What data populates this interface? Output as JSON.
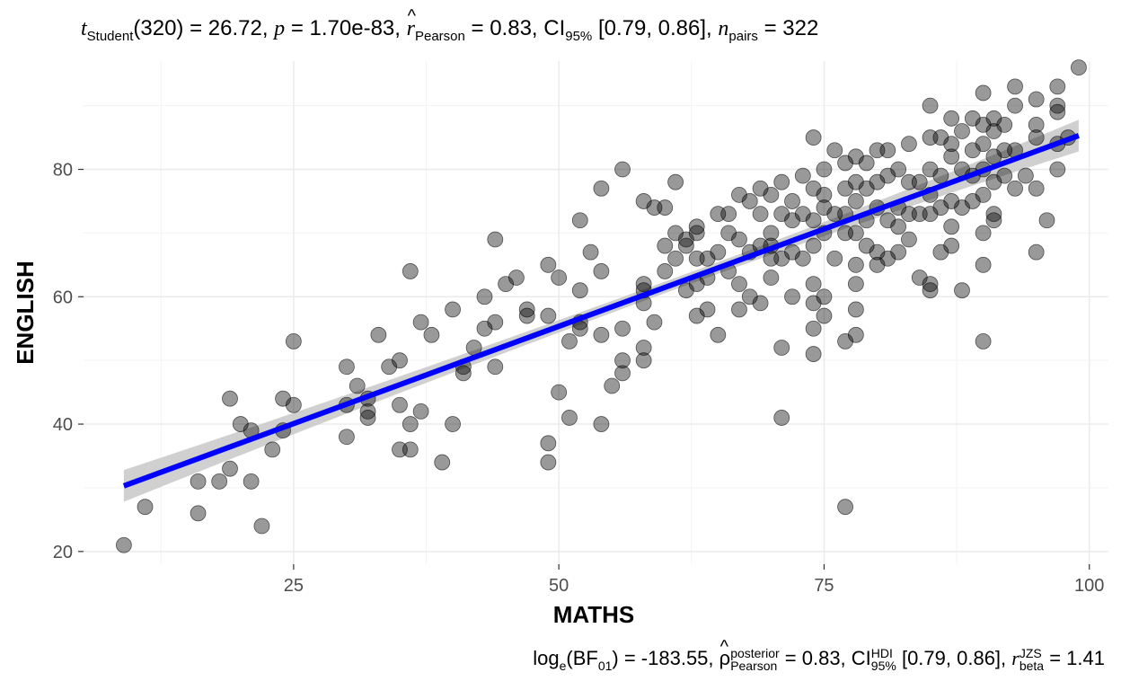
{
  "subtitle": {
    "t_symbol": "t",
    "t_sub": "Student",
    "t_val": "(320) = 26.72,",
    "p_symbol": "p",
    "p_val": "= 1.70e-83,",
    "r_symbol": "r",
    "r_sub": "Pearson",
    "r_val": "= 0.83, CI",
    "ci_sub": "95%",
    "ci_val": "[0.79, 0.86],",
    "n_symbol": "n",
    "n_sub": "pairs",
    "n_val": "= 322"
  },
  "caption": {
    "log_label": "log",
    "log_sub": "e",
    "bf_open": "(BF",
    "bf_sub": "01",
    "bf_val": ") = -183.55,",
    "rho_symbol": "ρ",
    "rho_sup": "posterior",
    "rho_sub": "Pearson",
    "rho_val": "= 0.83, CI",
    "ci_sup": "HDI",
    "ci_sub": "95%",
    "ci_val": "[0.79, 0.86],",
    "r_symbol": "r",
    "r_sup": "JZS",
    "r_sub": "beta",
    "r_val": "= 1.41"
  },
  "colors": {
    "point_fill": "#000000",
    "point_alpha": 0.4,
    "fit_line": "#0000ff",
    "ci_band": "#c8c8c8",
    "grid_major": "#ebebeb",
    "grid_minor": "#f3f3f3",
    "tick_text": "#4d4d4d"
  },
  "chart_data": {
    "type": "scatter",
    "xlabel": "MATHS",
    "ylabel": "ENGLISH",
    "xlim": [
      5.2,
      101.8
    ],
    "ylim": [
      18,
      97
    ],
    "x_ticks": [
      25,
      50,
      75,
      100
    ],
    "y_ticks": [
      20,
      40,
      60,
      80
    ],
    "grid": true,
    "fit": {
      "x0": 9,
      "y0": 30.3,
      "x1": 99,
      "y1": 85.3,
      "ci_halfwidth_ends": 2.5,
      "ci_halfwidth_mid": 0.9,
      "mid_x": 61.5
    },
    "points": [
      [
        9,
        21
      ],
      [
        11,
        27
      ],
      [
        16,
        31
      ],
      [
        16,
        26
      ],
      [
        18,
        31
      ],
      [
        19,
        33
      ],
      [
        19,
        44
      ],
      [
        20,
        40
      ],
      [
        21,
        39
      ],
      [
        21,
        31
      ],
      [
        22,
        24
      ],
      [
        23,
        36
      ],
      [
        24,
        44
      ],
      [
        24,
        39
      ],
      [
        25,
        43
      ],
      [
        25,
        53
      ],
      [
        30,
        38
      ],
      [
        30,
        43
      ],
      [
        30,
        49
      ],
      [
        31,
        46
      ],
      [
        32,
        42
      ],
      [
        32,
        41
      ],
      [
        32,
        44
      ],
      [
        33,
        54
      ],
      [
        34,
        49
      ],
      [
        35,
        50
      ],
      [
        35,
        43
      ],
      [
        35,
        36
      ],
      [
        36,
        64
      ],
      [
        36,
        36
      ],
      [
        36,
        40
      ],
      [
        37,
        42
      ],
      [
        37,
        56
      ],
      [
        38,
        54
      ],
      [
        39,
        34
      ],
      [
        40,
        58
      ],
      [
        40,
        40
      ],
      [
        41,
        48
      ],
      [
        41,
        49
      ],
      [
        42,
        52
      ],
      [
        43,
        60
      ],
      [
        43,
        55
      ],
      [
        44,
        56
      ],
      [
        44,
        69
      ],
      [
        44,
        49
      ],
      [
        45,
        62
      ],
      [
        46,
        63
      ],
      [
        47,
        58
      ],
      [
        47,
        57
      ],
      [
        49,
        65
      ],
      [
        49,
        57
      ],
      [
        49,
        37
      ],
      [
        49,
        34
      ],
      [
        50,
        63
      ],
      [
        50,
        45
      ],
      [
        51,
        53
      ],
      [
        51,
        41
      ],
      [
        52,
        61
      ],
      [
        52,
        56
      ],
      [
        52,
        55
      ],
      [
        52,
        72
      ],
      [
        53,
        67
      ],
      [
        54,
        54
      ],
      [
        54,
        77
      ],
      [
        54,
        64
      ],
      [
        54,
        40
      ],
      [
        55,
        46
      ],
      [
        56,
        80
      ],
      [
        56,
        55
      ],
      [
        56,
        48
      ],
      [
        56,
        50
      ],
      [
        58,
        75
      ],
      [
        58,
        62
      ],
      [
        58,
        61
      ],
      [
        58,
        59
      ],
      [
        58,
        52
      ],
      [
        58,
        50
      ],
      [
        59,
        74
      ],
      [
        59,
        56
      ],
      [
        60,
        74
      ],
      [
        60,
        68
      ],
      [
        60,
        64
      ],
      [
        61,
        78
      ],
      [
        61,
        66
      ],
      [
        61,
        70
      ],
      [
        62,
        69
      ],
      [
        62,
        61
      ],
      [
        62,
        68
      ],
      [
        63,
        71
      ],
      [
        63,
        70
      ],
      [
        63,
        66
      ],
      [
        63,
        62
      ],
      [
        63,
        57
      ],
      [
        64,
        66
      ],
      [
        64,
        63
      ],
      [
        64,
        58
      ],
      [
        65,
        73
      ],
      [
        65,
        54
      ],
      [
        65,
        67
      ],
      [
        66,
        73
      ],
      [
        66,
        70
      ],
      [
        66,
        64
      ],
      [
        67,
        69
      ],
      [
        67,
        76
      ],
      [
        67,
        62
      ],
      [
        67,
        58
      ],
      [
        68,
        75
      ],
      [
        68,
        67
      ],
      [
        68,
        60
      ],
      [
        69,
        77
      ],
      [
        69,
        73
      ],
      [
        69,
        68
      ],
      [
        69,
        59
      ],
      [
        70,
        76
      ],
      [
        70,
        70
      ],
      [
        70,
        66
      ],
      [
        70,
        63
      ],
      [
        70,
        68
      ],
      [
        71,
        78
      ],
      [
        71,
        73
      ],
      [
        71,
        66
      ],
      [
        71,
        52
      ],
      [
        71,
        41
      ],
      [
        72,
        75
      ],
      [
        72,
        72
      ],
      [
        72,
        67
      ],
      [
        72,
        60
      ],
      [
        73,
        79
      ],
      [
        73,
        73
      ],
      [
        73,
        66
      ],
      [
        74,
        85
      ],
      [
        74,
        77
      ],
      [
        74,
        72
      ],
      [
        74,
        68
      ],
      [
        74,
        62
      ],
      [
        74,
        59
      ],
      [
        74,
        55
      ],
      [
        74,
        51
      ],
      [
        75,
        80
      ],
      [
        75,
        76
      ],
      [
        75,
        74
      ],
      [
        75,
        70
      ],
      [
        75,
        60
      ],
      [
        75,
        57
      ],
      [
        76,
        83
      ],
      [
        76,
        73
      ],
      [
        76,
        66
      ],
      [
        77,
        81
      ],
      [
        77,
        77
      ],
      [
        77,
        73
      ],
      [
        77,
        70
      ],
      [
        77,
        53
      ],
      [
        77,
        27
      ],
      [
        78,
        82
      ],
      [
        78,
        78
      ],
      [
        78,
        75
      ],
      [
        78,
        70
      ],
      [
        78,
        65
      ],
      [
        78,
        62
      ],
      [
        78,
        58
      ],
      [
        78,
        54
      ],
      [
        79,
        81
      ],
      [
        79,
        77
      ],
      [
        79,
        72
      ],
      [
        79,
        68
      ],
      [
        80,
        83
      ],
      [
        80,
        78
      ],
      [
        80,
        74
      ],
      [
        80,
        67
      ],
      [
        80,
        65
      ],
      [
        81,
        83
      ],
      [
        81,
        79
      ],
      [
        81,
        72
      ],
      [
        81,
        66
      ],
      [
        82,
        80
      ],
      [
        82,
        74
      ],
      [
        82,
        71
      ],
      [
        82,
        67
      ],
      [
        83,
        84
      ],
      [
        83,
        78
      ],
      [
        83,
        73
      ],
      [
        83,
        69
      ],
      [
        84,
        78
      ],
      [
        84,
        73
      ],
      [
        84,
        63
      ],
      [
        85,
        90
      ],
      [
        85,
        85
      ],
      [
        85,
        80
      ],
      [
        85,
        76
      ],
      [
        85,
        73
      ],
      [
        85,
        62
      ],
      [
        85,
        61
      ],
      [
        86,
        85
      ],
      [
        86,
        79
      ],
      [
        86,
        74
      ],
      [
        86,
        67
      ],
      [
        87,
        88
      ],
      [
        87,
        84
      ],
      [
        87,
        82
      ],
      [
        87,
        75
      ],
      [
        87,
        71
      ],
      [
        87,
        68
      ],
      [
        88,
        86
      ],
      [
        88,
        80
      ],
      [
        88,
        74
      ],
      [
        88,
        61
      ],
      [
        89,
        88
      ],
      [
        89,
        83
      ],
      [
        89,
        79
      ],
      [
        89,
        75
      ],
      [
        90,
        92
      ],
      [
        90,
        87
      ],
      [
        90,
        84
      ],
      [
        90,
        80
      ],
      [
        90,
        76
      ],
      [
        90,
        70
      ],
      [
        90,
        65
      ],
      [
        90,
        53
      ],
      [
        91,
        88
      ],
      [
        91,
        86
      ],
      [
        91,
        82
      ],
      [
        91,
        78
      ],
      [
        91,
        73
      ],
      [
        91,
        72
      ],
      [
        92,
        87
      ],
      [
        92,
        83
      ],
      [
        92,
        79
      ],
      [
        93,
        93
      ],
      [
        93,
        90
      ],
      [
        93,
        83
      ],
      [
        93,
        77
      ],
      [
        94,
        79
      ],
      [
        95,
        91
      ],
      [
        95,
        87
      ],
      [
        95,
        85
      ],
      [
        95,
        77
      ],
      [
        95,
        67
      ],
      [
        96,
        72
      ],
      [
        97,
        93
      ],
      [
        97,
        90
      ],
      [
        97,
        89
      ],
      [
        97,
        84
      ],
      [
        97,
        80
      ],
      [
        98,
        85
      ],
      [
        99,
        96
      ]
    ]
  }
}
